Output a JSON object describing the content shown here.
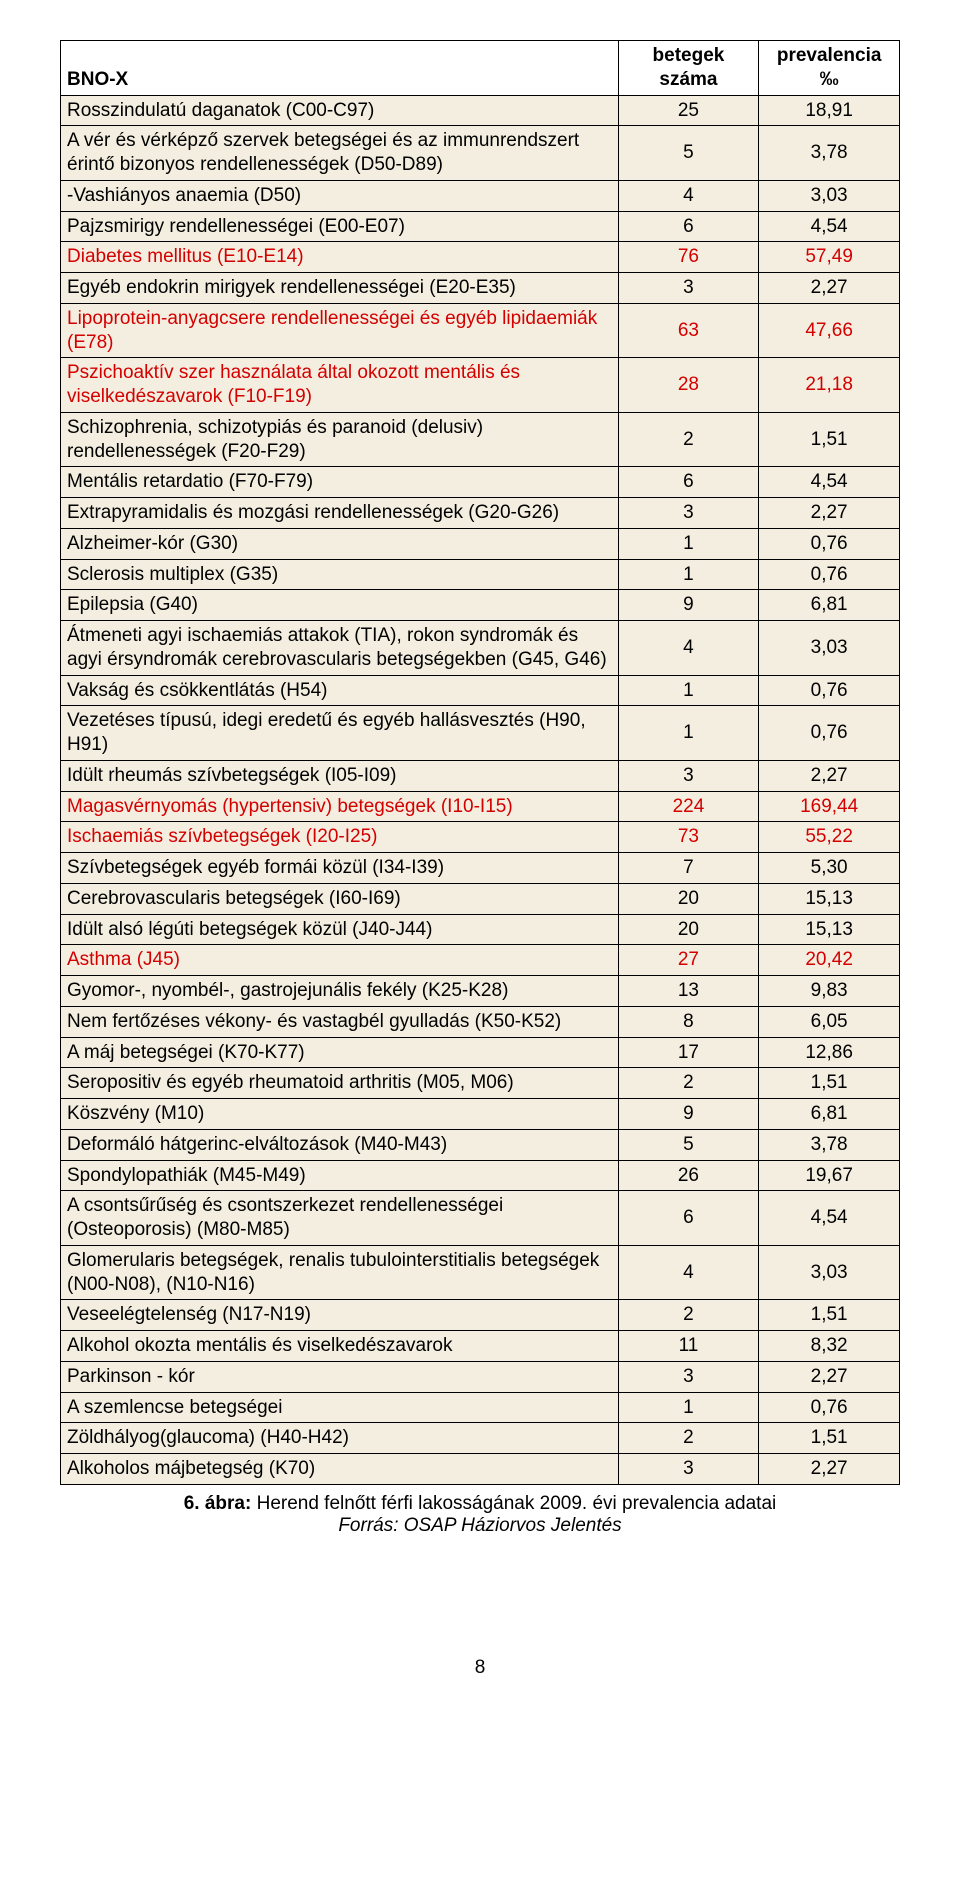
{
  "header": {
    "name": "BNO-X",
    "count": "betegek száma",
    "prev": "prevalencia ‰"
  },
  "rows": [
    {
      "name": "Rosszindulatú daganatok (C00-C97)",
      "count": "25",
      "prev": "18,91",
      "red": false
    },
    {
      "name": "A vér és vérképző szervek betegségei és az immunrendszert érintő bizonyos rendellenességek (D50-D89)",
      "count": "5",
      "prev": "3,78",
      "red": false
    },
    {
      "name": "-Vashiányos anaemia (D50)",
      "count": "4",
      "prev": "3,03",
      "red": false
    },
    {
      "name": "Pajzsmirigy rendellenességei (E00-E07)",
      "count": "6",
      "prev": "4,54",
      "red": false
    },
    {
      "name": "Diabetes mellitus (E10-E14)",
      "count": "76",
      "prev": "57,49",
      "red": true
    },
    {
      "name": "Egyéb endokrin mirigyek rendellenességei (E20-E35)",
      "count": "3",
      "prev": "2,27",
      "red": false
    },
    {
      "name": "Lipoprotein-anyagcsere rendellenességei és egyéb lipidaemiák (E78)",
      "count": "63",
      "prev": "47,66",
      "red": true
    },
    {
      "name": "Pszichoaktív szer használata által okozott mentális és viselkedészavarok (F10-F19)",
      "count": "28",
      "prev": "21,18",
      "red": true
    },
    {
      "name": "Schizophrenia, schizotypiás és paranoid (delusiv) rendellenességek (F20-F29)",
      "count": "2",
      "prev": "1,51",
      "red": false
    },
    {
      "name": "Mentális retardatio (F70-F79)",
      "count": "6",
      "prev": "4,54",
      "red": false
    },
    {
      "name": "Extrapyramidalis és mozgási rendellenességek (G20-G26)",
      "count": "3",
      "prev": "2,27",
      "red": false
    },
    {
      "name": "Alzheimer-kór (G30)",
      "count": "1",
      "prev": "0,76",
      "red": false
    },
    {
      "name": "Sclerosis multiplex (G35)",
      "count": "1",
      "prev": "0,76",
      "red": false
    },
    {
      "name": "Epilepsia (G40)",
      "count": "9",
      "prev": "6,81",
      "red": false
    },
    {
      "name": "Átmeneti agyi ischaemiás attakok (TIA), rokon syndromák és agyi érsyndromák cerebrovascularis betegségekben (G45, G46)",
      "count": "4",
      "prev": "3,03",
      "red": false
    },
    {
      "name": "Vakság és csökkentlátás (H54)",
      "count": "1",
      "prev": "0,76",
      "red": false
    },
    {
      "name": "Vezetéses típusú, idegi eredetű és egyéb hallásvesztés (H90, H91)",
      "count": "1",
      "prev": "0,76",
      "red": false
    },
    {
      "name": "Idült rheumás szívbetegségek (I05-I09)",
      "count": "3",
      "prev": "2,27",
      "red": false
    },
    {
      "name": "Magasvérnyomás (hypertensiv) betegségek (I10-I15)",
      "count": "224",
      "prev": "169,44",
      "red": true
    },
    {
      "name": "Ischaemiás szívbetegségek (I20-I25)",
      "count": "73",
      "prev": "55,22",
      "red": true
    },
    {
      "name": "Szívbetegségek egyéb formái közül (I34-I39)",
      "count": "7",
      "prev": "5,30",
      "red": false
    },
    {
      "name": "Cerebrovascularis betegségek (I60-I69)",
      "count": "20",
      "prev": "15,13",
      "red": false
    },
    {
      "name": "Idült alsó légúti betegségek közül (J40-J44)",
      "count": "20",
      "prev": "15,13",
      "red": false
    },
    {
      "name": "Asthma (J45)",
      "count": "27",
      "prev": "20,42",
      "red": true
    },
    {
      "name": "Gyomor-, nyombél-, gastrojejunális fekély (K25-K28)",
      "count": "13",
      "prev": "9,83",
      "red": false
    },
    {
      "name": "Nem fertőzéses vékony- és vastagbél gyulladás (K50-K52)",
      "count": "8",
      "prev": "6,05",
      "red": false
    },
    {
      "name": "A máj betegségei (K70-K77)",
      "count": "17",
      "prev": "12,86",
      "red": false
    },
    {
      "name": "Seropositiv és egyéb rheumatoid arthritis (M05, M06)",
      "count": "2",
      "prev": "1,51",
      "red": false
    },
    {
      "name": "Köszvény (M10)",
      "count": "9",
      "prev": "6,81",
      "red": false
    },
    {
      "name": "Deformáló hátgerinc-elváltozások (M40-M43)",
      "count": "5",
      "prev": "3,78",
      "red": false
    },
    {
      "name": "Spondylopathiák (M45-M49)",
      "count": "26",
      "prev": "19,67",
      "red": false
    },
    {
      "name": "A csontsűrűség és csontszerkezet rendellenességei (Osteoporosis) (M80-M85)",
      "count": "6",
      "prev": "4,54",
      "red": false
    },
    {
      "name": "Glomerularis betegségek, renalis tubulointerstitialis betegségek (N00-N08), (N10-N16)",
      "count": "4",
      "prev": "3,03",
      "red": false
    },
    {
      "name": "Veseelégtelenség (N17-N19)",
      "count": "2",
      "prev": "1,51",
      "red": false
    },
    {
      "name": "Alkohol okozta mentális és viselkedészavarok",
      "count": "11",
      "prev": "8,32",
      "red": false
    },
    {
      "name": "Parkinson - kór",
      "count": "3",
      "prev": "2,27",
      "red": false
    },
    {
      "name": "A szemlencse betegségei",
      "count": "1",
      "prev": "0,76",
      "red": false
    },
    {
      "name": "Zöldhályog(glaucoma) (H40-H42)",
      "count": "2",
      "prev": "1,51",
      "red": false
    },
    {
      "name": "Alkoholos májbetegség (K70)",
      "count": "3",
      "prev": "2,27",
      "red": false
    }
  ],
  "caption": {
    "bold": "6. ábra:",
    "title": " Herend felnőtt férfi lakosságának 2009. évi prevalencia adatai",
    "source": "Forrás: OSAP Háziorvos Jelentés"
  },
  "pageNumber": "8",
  "colors": {
    "rowBg": "#f3eee0",
    "red": "#d40000",
    "black": "#000000"
  }
}
